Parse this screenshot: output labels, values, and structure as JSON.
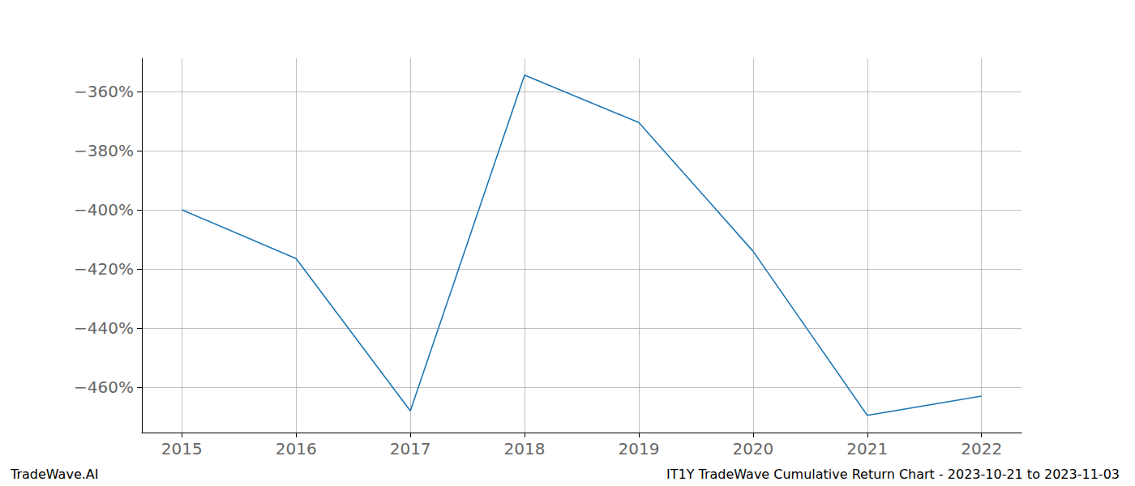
{
  "chart_data": {
    "type": "line",
    "title": "IT1Y TradeWave Cumulative Return Chart - 2023-10-21 to 2023-11-03",
    "subtitle": "TradeWave.AI",
    "x": [
      2015,
      2016,
      2017,
      2018,
      2019,
      2020,
      2021,
      2022
    ],
    "values": [
      -400,
      -416.5,
      -468,
      -354.5,
      -370.5,
      -414,
      -469.5,
      -463
    ],
    "color": "#1f77b4",
    "xlim": [
      2014.65,
      2022.35
    ],
    "xticks": [
      2015,
      2016,
      2017,
      2018,
      2019,
      2020,
      2021,
      2022
    ],
    "ylim": [
      -475.3,
      -348.8
    ],
    "yticks": [
      {
        "value": -460,
        "label": "−460%"
      },
      {
        "value": -440,
        "label": "−440%"
      },
      {
        "value": -420,
        "label": "−420%"
      },
      {
        "value": -400,
        "label": "−400%"
      },
      {
        "value": -380,
        "label": "−380%"
      },
      {
        "value": -360,
        "label": "−360%"
      }
    ],
    "grid": true
  }
}
